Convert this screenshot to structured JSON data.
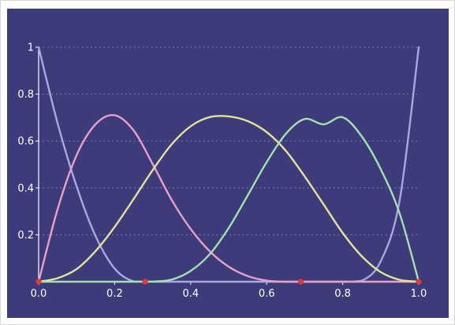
{
  "chart_data": {
    "type": "line",
    "title": "",
    "xlabel": "",
    "ylabel": "",
    "xlim": [
      0,
      1
    ],
    "ylim": [
      0,
      1
    ],
    "x_ticks": [
      "0.0",
      "0.2",
      "0.4",
      "0.6",
      "0.8",
      "1.0"
    ],
    "x_tick_values": [
      0,
      0.2,
      0.4,
      0.6,
      0.8,
      1.0
    ],
    "y_ticks": [
      "0.2",
      "0.4",
      "0.6",
      "0.8",
      "1"
    ],
    "y_tick_values": [
      0.2,
      0.4,
      0.6,
      0.8,
      1.0
    ],
    "grid": "horizontal dotted",
    "colors": {
      "background": "#3d3b7a",
      "axis": "#ffffff",
      "grid": "#8e8cc0",
      "knot": "#e0383b"
    },
    "x": [
      0,
      0.05,
      0.1,
      0.15,
      0.2,
      0.25,
      0.3,
      0.35,
      0.4,
      0.45,
      0.5,
      0.55,
      0.6,
      0.65,
      0.7,
      0.75,
      0.8,
      0.85,
      0.9,
      0.95,
      1.0
    ],
    "series": [
      {
        "color": "#a8a8df",
        "values": [
          1.0,
          0.675,
          0.406,
          0.194,
          0.056,
          0.001,
          0,
          0,
          0,
          0,
          0,
          0,
          0,
          0,
          0,
          0,
          0,
          0.004,
          0.087,
          0.349,
          1.0
        ]
      },
      {
        "color": "#e6a1c6",
        "values": [
          0,
          0.31,
          0.54,
          0.672,
          0.71,
          0.645,
          0.502,
          0.349,
          0.225,
          0.13,
          0.064,
          0.024,
          0.005,
          0,
          0,
          0,
          0,
          0,
          0,
          0,
          0
        ]
      },
      {
        "color": "#e2e39a",
        "values": [
          0,
          0.015,
          0.054,
          0.131,
          0.234,
          0.353,
          0.476,
          0.586,
          0.663,
          0.702,
          0.705,
          0.685,
          0.638,
          0.559,
          0.449,
          0.329,
          0.208,
          0.109,
          0.041,
          0.008,
          0
        ]
      },
      {
        "color": "#a4e1b0",
        "values": [
          0,
          0,
          0,
          0,
          0,
          0,
          0.0005,
          0.009,
          0.046,
          0.117,
          0.229,
          0.368,
          0.51,
          0.63,
          0.694,
          0.671,
          0.701,
          0.62,
          0.48,
          0.29,
          0
        ]
      }
    ],
    "knots": [
      0,
      0.28,
      0.69,
      1.0
    ]
  }
}
